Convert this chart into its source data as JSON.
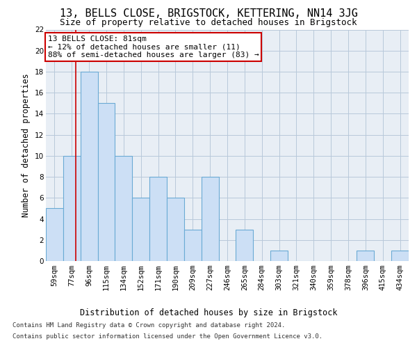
{
  "title": "13, BELLS CLOSE, BRIGSTOCK, KETTERING, NN14 3JG",
  "subtitle": "Size of property relative to detached houses in Brigstock",
  "xlabel": "Distribution of detached houses by size in Brigstock",
  "ylabel": "Number of detached properties",
  "categories": [
    "59sqm",
    "77sqm",
    "96sqm",
    "115sqm",
    "134sqm",
    "152sqm",
    "171sqm",
    "190sqm",
    "209sqm",
    "227sqm",
    "246sqm",
    "265sqm",
    "284sqm",
    "303sqm",
    "321sqm",
    "340sqm",
    "359sqm",
    "378sqm",
    "396sqm",
    "415sqm",
    "434sqm"
  ],
  "values": [
    5,
    10,
    18,
    15,
    10,
    6,
    8,
    6,
    3,
    8,
    0,
    3,
    0,
    1,
    0,
    0,
    0,
    0,
    1,
    0,
    1
  ],
  "bar_color": "#ccdff5",
  "bar_edge_color": "#6aaad4",
  "annotation_line1": "13 BELLS CLOSE: 81sqm",
  "annotation_line2": "← 12% of detached houses are smaller (11)",
  "annotation_line3": "88% of semi-detached houses are larger (83) →",
  "annotation_box_color": "#ffffff",
  "annotation_box_edge_color": "#cc0000",
  "ylim": [
    0,
    22
  ],
  "yticks": [
    0,
    2,
    4,
    6,
    8,
    10,
    12,
    14,
    16,
    18,
    20,
    22
  ],
  "footer_line1": "Contains HM Land Registry data © Crown copyright and database right 2024.",
  "footer_line2": "Contains public sector information licensed under the Open Government Licence v3.0.",
  "background_color": "#ffffff",
  "plot_bg_color": "#e8eef5",
  "grid_color": "#b8c8da",
  "title_fontsize": 11,
  "subtitle_fontsize": 9,
  "axis_label_fontsize": 8.5,
  "tick_fontsize": 7.5,
  "annotation_fontsize": 8,
  "footer_fontsize": 6.5
}
